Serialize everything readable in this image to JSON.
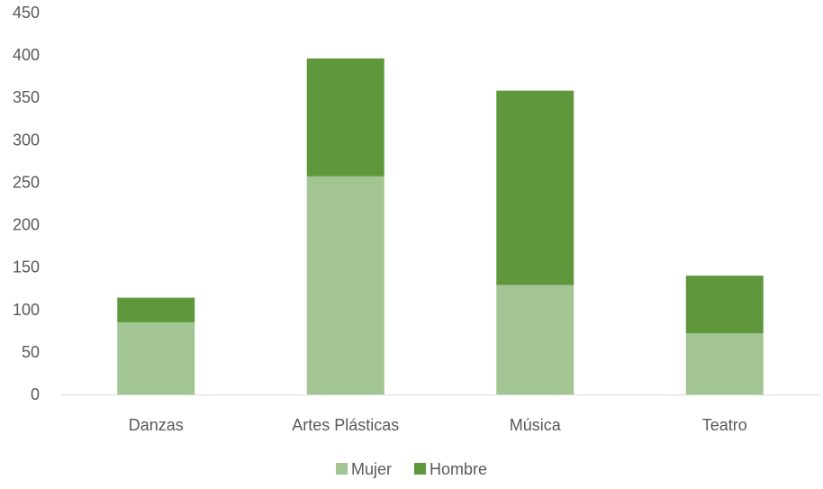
{
  "chart_data": {
    "type": "bar",
    "stacked": true,
    "title": "",
    "xlabel": "",
    "ylabel": "",
    "categories": [
      "Danzas",
      "Artes Plásticas",
      "Música",
      "Teatro"
    ],
    "series": [
      {
        "name": "Mujer",
        "color": "#a2c593",
        "values": [
          85,
          257,
          129,
          72
        ]
      },
      {
        "name": "Hombre",
        "color": "#5f983c",
        "values": [
          29,
          139,
          229,
          68
        ]
      }
    ],
    "ylim": [
      0,
      450
    ],
    "yticks": [
      0,
      50,
      100,
      150,
      200,
      250,
      300,
      350,
      400,
      450
    ],
    "grid": false,
    "legend_position": "bottom"
  }
}
